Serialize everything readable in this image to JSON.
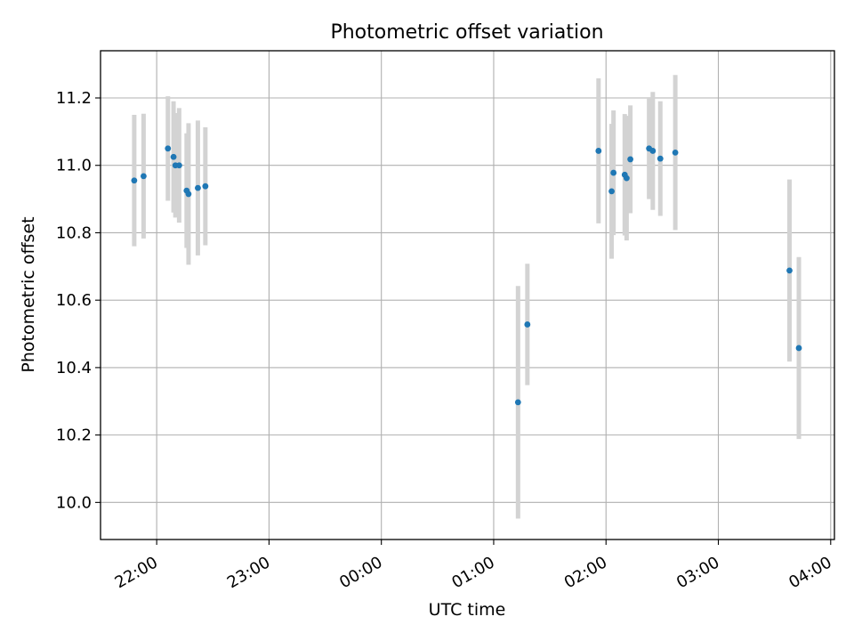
{
  "chart_data": {
    "type": "scatter",
    "title": "Photometric offset variation",
    "xlabel": "UTC time",
    "ylabel": "Photometric offset",
    "x_ticks": [
      "22:00",
      "23:00",
      "00:00",
      "01:00",
      "02:00",
      "03:00",
      "04:00"
    ],
    "y_ticks": [
      "10.0",
      "10.2",
      "10.4",
      "10.6",
      "10.8",
      "11.0",
      "11.2"
    ],
    "xlim": [
      "21:30",
      "04:02"
    ],
    "ylim": [
      9.89,
      11.34
    ],
    "grid": true,
    "errorbar_color": "#d3d3d3",
    "marker_color": "#1f77b4",
    "points": [
      {
        "x": "21:48",
        "y": 10.955,
        "yerr": 0.195
      },
      {
        "x": "21:53",
        "y": 10.968,
        "yerr": 0.185
      },
      {
        "x": "22:06",
        "y": 11.05,
        "yerr": 0.155
      },
      {
        "x": "22:09",
        "y": 11.025,
        "yerr": 0.165
      },
      {
        "x": "22:10",
        "y": 11.0,
        "yerr": 0.155
      },
      {
        "x": "22:12",
        "y": 11.0,
        "yerr": 0.17
      },
      {
        "x": "22:16",
        "y": 10.925,
        "yerr": 0.17
      },
      {
        "x": "22:17",
        "y": 10.915,
        "yerr": 0.21
      },
      {
        "x": "22:22",
        "y": 10.933,
        "yerr": 0.2
      },
      {
        "x": "22:26",
        "y": 10.938,
        "yerr": 0.175
      },
      {
        "x": "01:13",
        "y": 10.297,
        "yerr": 0.345
      },
      {
        "x": "01:18",
        "y": 10.528,
        "yerr": 0.18
      },
      {
        "x": "01:56",
        "y": 11.043,
        "yerr": 0.215
      },
      {
        "x": "02:03",
        "y": 10.923,
        "yerr": 0.2
      },
      {
        "x": "02:04",
        "y": 10.978,
        "yerr": 0.185
      },
      {
        "x": "02:10",
        "y": 10.972,
        "yerr": 0.18
      },
      {
        "x": "02:11",
        "y": 10.962,
        "yerr": 0.185
      },
      {
        "x": "02:13",
        "y": 11.018,
        "yerr": 0.16
      },
      {
        "x": "02:23",
        "y": 11.05,
        "yerr": 0.15
      },
      {
        "x": "02:25",
        "y": 11.043,
        "yerr": 0.175
      },
      {
        "x": "02:29",
        "y": 11.02,
        "yerr": 0.17
      },
      {
        "x": "02:37",
        "y": 11.038,
        "yerr": 0.23
      },
      {
        "x": "03:38",
        "y": 10.688,
        "yerr": 0.27
      },
      {
        "x": "03:43",
        "y": 10.458,
        "yerr": 0.27
      }
    ]
  }
}
